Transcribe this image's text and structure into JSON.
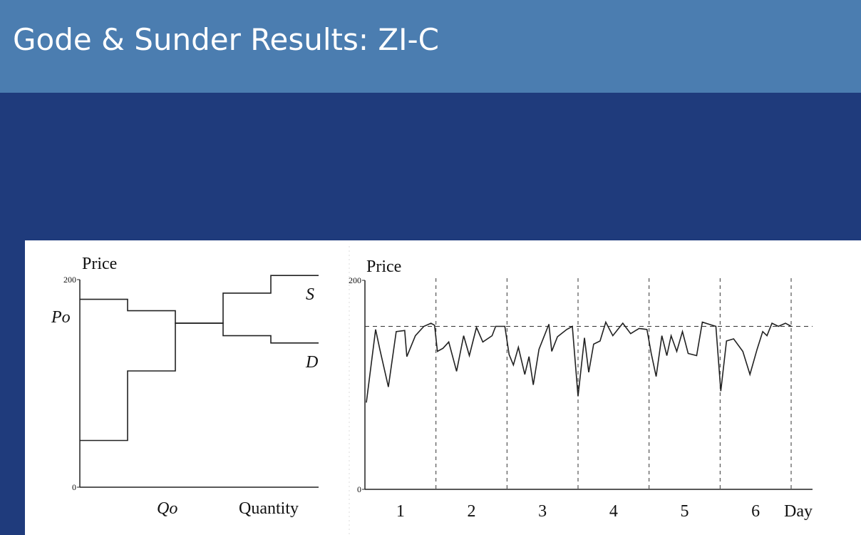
{
  "slide": {
    "title": "Gode & Sunder Results: ZI-C"
  },
  "chart_data": [
    {
      "type": "step",
      "y_label": "Price",
      "x_label": "Quantity",
      "ylim": [
        0,
        200
      ],
      "yticks": [
        0,
        200
      ],
      "xlim": [
        0,
        5
      ],
      "annotations": {
        "price": "Po",
        "quantity": "Qo"
      },
      "series": [
        {
          "name": "S",
          "color": "#222222",
          "x": [
            0,
            1,
            1,
            2,
            2,
            3,
            3,
            4,
            4,
            5
          ],
          "values": [
            45,
            45,
            112,
            112,
            158,
            158,
            187,
            187,
            204,
            204
          ]
        },
        {
          "name": "D",
          "color": "#222222",
          "x": [
            0,
            1,
            1,
            2,
            2,
            3,
            3,
            4,
            4,
            5
          ],
          "values": [
            181,
            181,
            170,
            170,
            158,
            158,
            146,
            146,
            139,
            139
          ]
        }
      ]
    },
    {
      "type": "line",
      "y_label": "Price",
      "x_label": "Day",
      "ylim": [
        0,
        200
      ],
      "yticks": [
        0,
        200
      ],
      "xlim": [
        0,
        6
      ],
      "categories": [
        "1",
        "2",
        "3",
        "4",
        "5",
        "6"
      ],
      "day_boundaries": [
        1,
        2,
        3,
        4,
        5,
        6
      ],
      "hline": 156,
      "series": [
        {
          "color": "#222222",
          "x": [
            0.02,
            0.15,
            0.21,
            0.33,
            0.44,
            0.56,
            0.59,
            0.71,
            0.83,
            0.93,
            0.98,
            1.02,
            1.1,
            1.18,
            1.29,
            1.39,
            1.47,
            1.57,
            1.66,
            1.79,
            1.84,
            1.97,
            2.03,
            2.09,
            2.16,
            2.25,
            2.31,
            2.37,
            2.45,
            2.59,
            2.63,
            2.71,
            2.84,
            2.92,
            3.0,
            3.09,
            3.15,
            3.22,
            3.31,
            3.39,
            3.49,
            3.63,
            3.74,
            3.86,
            3.97,
            4.03,
            4.1,
            4.18,
            4.25,
            4.31,
            4.39,
            4.47,
            4.55,
            4.67,
            4.75,
            4.89,
            4.94,
            5.01,
            5.09,
            5.19,
            5.32,
            5.42,
            5.52,
            5.6,
            5.66,
            5.73,
            5.82,
            5.92,
            6.0
          ],
          "values": [
            83,
            153,
            134,
            98,
            151,
            152,
            127,
            147,
            156,
            159,
            157,
            132,
            135,
            141,
            113,
            147,
            128,
            155,
            141,
            147,
            156,
            156,
            129,
            119,
            136,
            110,
            127,
            100,
            134,
            158,
            132,
            146,
            153,
            156,
            89,
            145,
            112,
            139,
            142,
            160,
            147,
            159,
            149,
            154,
            153,
            130,
            108,
            147,
            128,
            147,
            132,
            151,
            130,
            128,
            160,
            157,
            156,
            94,
            142,
            144,
            132,
            110,
            134,
            151,
            147,
            159,
            156,
            159,
            156
          ]
        }
      ]
    }
  ]
}
